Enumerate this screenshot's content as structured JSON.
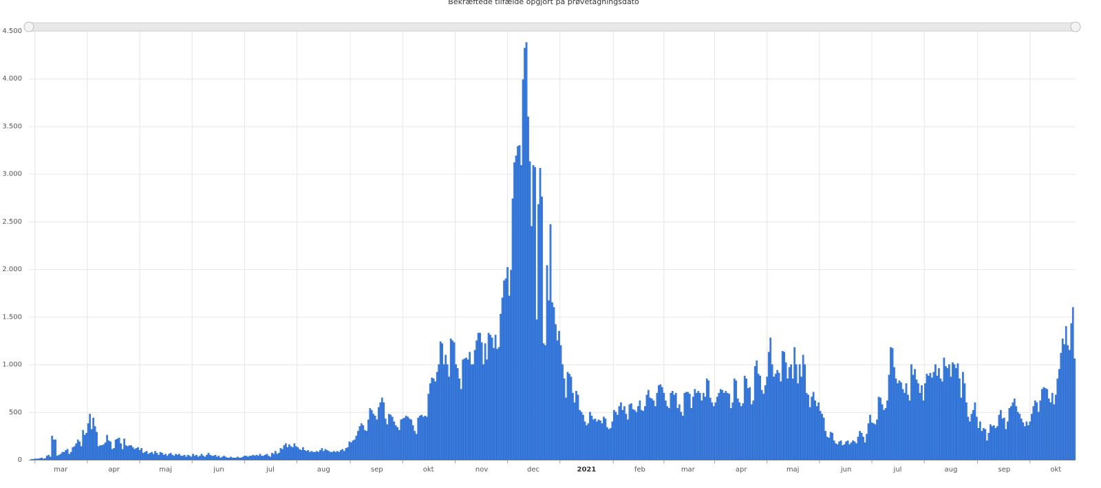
{
  "chart_data": {
    "type": "bar",
    "title": "Bekræftede tilfælde opgjort på prøvetagningsdato",
    "categories": [
      null,
      null,
      null,
      null,
      null,
      null,
      null,
      null,
      null,
      null,
      null,
      null,
      null,
      null,
      null,
      null,
      null,
      null,
      "mar",
      null,
      null,
      null,
      null,
      null,
      null,
      null,
      null,
      null,
      null,
      null,
      null,
      null,
      null,
      null,
      null,
      null,
      null,
      null,
      null,
      null,
      null,
      null,
      null,
      null,
      null,
      null,
      null,
      null,
      null,
      "apr",
      null,
      null,
      null,
      null,
      null,
      null,
      null,
      null,
      null,
      null,
      null,
      null,
      null,
      null,
      null,
      null,
      null,
      null,
      null,
      null,
      null,
      null,
      null,
      null,
      null,
      null,
      null,
      null,
      null,
      "maj",
      null,
      null,
      null,
      null,
      null,
      null,
      null,
      null,
      null,
      null,
      null,
      null,
      null,
      null,
      null,
      null,
      null,
      null,
      null,
      null,
      null,
      null,
      null,
      null,
      null,
      null,
      null,
      null,
      null,
      null,
      "jun",
      null,
      null,
      null,
      null,
      null,
      null,
      null,
      null,
      null,
      null,
      null,
      null,
      null,
      null,
      null,
      null,
      null,
      null,
      null,
      null,
      null,
      null,
      null,
      null,
      null,
      null,
      null,
      null,
      null,
      "jul",
      null,
      null,
      null,
      null,
      null,
      null,
      null,
      null,
      null,
      null,
      null,
      null,
      null,
      null,
      null,
      null,
      null,
      null,
      null,
      null,
      null,
      null,
      null,
      null,
      null,
      null,
      null,
      null,
      null,
      null,
      "aug",
      null,
      null,
      null,
      null,
      null,
      null,
      null,
      null,
      null,
      null,
      null,
      null,
      null,
      null,
      null,
      null,
      null,
      null,
      null,
      null,
      null,
      null,
      null,
      null,
      null,
      null,
      null,
      null,
      null,
      null,
      "sep",
      null,
      null,
      null,
      null,
      null,
      null,
      null,
      null,
      null,
      null,
      null,
      null,
      null,
      null,
      null,
      null,
      null,
      null,
      null,
      null,
      null,
      null,
      null,
      null,
      null,
      null,
      null,
      null,
      null,
      "okt",
      null,
      null,
      null,
      null,
      null,
      null,
      null,
      null,
      null,
      null,
      null,
      null,
      null,
      null,
      null,
      null,
      null,
      null,
      null,
      null,
      null,
      null,
      null,
      null,
      null,
      null,
      null,
      null,
      null,
      null,
      "nov",
      null,
      null,
      null,
      null,
      null,
      null,
      null,
      null,
      null,
      null,
      null,
      null,
      null,
      null,
      null,
      null,
      null,
      null,
      null,
      null,
      null,
      null,
      null,
      null,
      null,
      null,
      null,
      null,
      null,
      "dec",
      null,
      null,
      null,
      null,
      null,
      null,
      null,
      null,
      null,
      null,
      null,
      null,
      null,
      null,
      null,
      null,
      null,
      null,
      null,
      null,
      null,
      null,
      null,
      null,
      null,
      null,
      null,
      null,
      null,
      null,
      "2021",
      null,
      null,
      null,
      null,
      null,
      null,
      null,
      null,
      null,
      null,
      null,
      null,
      null,
      null,
      null,
      null,
      null,
      null,
      null,
      null,
      null,
      null,
      null,
      null,
      null,
      null,
      null,
      null,
      null,
      null,
      "feb",
      null,
      null,
      null,
      null,
      null,
      null,
      null,
      null,
      null,
      null,
      null,
      null,
      null,
      null,
      null,
      null,
      null,
      null,
      null,
      null,
      null,
      null,
      null,
      null,
      null,
      null,
      null,
      "mar",
      null,
      null,
      null,
      null,
      null,
      null,
      null,
      null,
      null,
      null,
      null,
      null,
      null,
      null,
      null,
      null,
      null,
      null,
      null,
      null,
      null,
      null,
      null,
      null,
      null,
      null,
      null,
      null,
      null,
      null,
      "apr",
      null,
      null,
      null,
      null,
      null,
      null,
      null,
      null,
      null,
      null,
      null,
      null,
      null,
      null,
      null,
      null,
      null,
      null,
      null,
      null,
      null,
      null,
      null,
      null,
      null,
      null,
      null,
      null,
      null,
      "maj",
      null,
      null,
      null,
      null,
      null,
      null,
      null,
      null,
      null,
      null,
      null,
      null,
      null,
      null,
      null,
      null,
      null,
      null,
      null,
      null,
      null,
      null,
      null,
      null,
      null,
      null,
      null,
      null,
      null,
      null,
      "jun",
      null,
      null,
      null,
      null,
      null,
      null,
      null,
      null,
      null,
      null,
      null,
      null,
      null,
      null,
      null,
      null,
      null,
      null,
      null,
      null,
      null,
      null,
      null,
      null,
      null,
      null,
      null,
      null,
      null,
      "jul",
      null,
      null,
      null,
      null,
      null,
      null,
      null,
      null,
      null,
      null,
      null,
      null,
      null,
      null,
      null,
      null,
      null,
      null,
      null,
      null,
      null,
      null,
      null,
      null,
      null,
      null,
      null,
      null,
      null,
      null,
      "aug",
      null,
      null,
      null,
      null,
      null,
      null,
      null,
      null,
      null,
      null,
      null,
      null,
      null,
      null,
      null,
      null,
      null,
      null,
      null,
      null,
      null,
      null,
      null,
      null,
      null,
      null,
      null,
      null,
      null,
      null,
      "sep",
      null,
      null,
      null,
      null,
      null,
      null,
      null,
      null,
      null,
      null,
      null,
      null,
      null,
      null,
      null,
      null,
      null,
      null,
      null,
      null,
      null,
      null,
      null,
      null,
      null,
      null,
      null,
      null,
      null,
      "okt",
      null,
      null,
      null,
      null,
      null,
      null,
      null,
      null,
      null,
      null,
      null
    ],
    "values": [
      0,
      5,
      5,
      10,
      10,
      10,
      15,
      20,
      10,
      15,
      40,
      50,
      30,
      250,
      210,
      210,
      40,
      50,
      60,
      80,
      80,
      100,
      110,
      60,
      80,
      130,
      140,
      170,
      210,
      190,
      140,
      310,
      260,
      280,
      380,
      480,
      320,
      440,
      350,
      290,
      140,
      150,
      150,
      160,
      180,
      260,
      200,
      190,
      110,
      120,
      210,
      220,
      230,
      170,
      110,
      220,
      150,
      140,
      150,
      150,
      130,
      110,
      120,
      130,
      100,
      120,
      70,
      80,
      90,
      60,
      70,
      80,
      60,
      90,
      70,
      50,
      80,
      70,
      50,
      60,
      40,
      60,
      70,
      50,
      40,
      60,
      50,
      60,
      40,
      40,
      50,
      30,
      50,
      40,
      30,
      60,
      40,
      50,
      30,
      40,
      60,
      40,
      30,
      50,
      70,
      50,
      40,
      40,
      50,
      30,
      40,
      20,
      30,
      40,
      30,
      20,
      20,
      30,
      20,
      20,
      20,
      30,
      20,
      20,
      30,
      40,
      40,
      30,
      40,
      40,
      50,
      40,
      50,
      40,
      60,
      40,
      40,
      50,
      60,
      40,
      30,
      70,
      60,
      90,
      60,
      70,
      120,
      110,
      150,
      170,
      130,
      160,
      140,
      130,
      170,
      140,
      130,
      110,
      100,
      130,
      100,
      90,
      100,
      80,
      90,
      80,
      80,
      90,
      80,
      100,
      120,
      90,
      110,
      100,
      90,
      80,
      80,
      90,
      80,
      90,
      80,
      100,
      110,
      90,
      120,
      130,
      190,
      180,
      200,
      210,
      250,
      300,
      350,
      380,
      360,
      310,
      300,
      420,
      540,
      520,
      480,
      460,
      420,
      550,
      600,
      650,
      600,
      430,
      370,
      480,
      470,
      450,
      400,
      360,
      340,
      310,
      420,
      430,
      440,
      460,
      450,
      430,
      420,
      360,
      300,
      270,
      440,
      460,
      470,
      450,
      460,
      450,
      690,
      800,
      860,
      850,
      820,
      920,
      1000,
      1240,
      1220,
      1000,
      1100,
      1000,
      870,
      1270,
      1250,
      1230,
      1000,
      960,
      850,
      740,
      1050,
      1060,
      1070,
      1050,
      1130,
      1000,
      1000,
      1150,
      1250,
      1330,
      1330,
      1230,
      1000,
      1220,
      1050,
      1330,
      1310,
      1280,
      1170,
      1310,
      1160,
      1180,
      1530,
      1700,
      1880,
      1900,
      2020,
      1720,
      1990,
      2740,
      3120,
      3190,
      3290,
      3300,
      3090,
      3990,
      4320,
      4380,
      3600,
      3130,
      2450,
      3090,
      3070,
      1470,
      2680,
      3060,
      2760,
      1220,
      1200,
      2040,
      1670,
      2470,
      1650,
      1600,
      1420,
      1250,
      1350,
      1200,
      1000,
      850,
      650,
      920,
      900,
      870,
      700,
      600,
      720,
      680,
      520,
      500,
      470,
      400,
      360,
      380,
      500,
      460,
      420,
      430,
      400,
      420,
      410,
      380,
      450,
      430,
      340,
      320,
      330,
      400,
      520,
      500,
      470,
      560,
      600,
      520,
      560,
      480,
      420,
      580,
      590,
      530,
      520,
      500,
      560,
      620,
      520,
      510,
      560,
      680,
      730,
      650,
      640,
      620,
      560,
      700,
      780,
      790,
      760,
      700,
      620,
      560,
      540,
      700,
      720,
      680,
      700,
      540,
      580,
      500,
      460,
      700,
      710,
      710,
      690,
      540,
      660,
      740,
      700,
      720,
      700,
      620,
      700,
      660,
      850,
      830,
      650,
      600,
      560,
      600,
      660,
      700,
      740,
      730,
      700,
      720,
      700,
      690,
      540,
      600,
      850,
      830,
      640,
      600,
      560,
      590,
      880,
      850,
      750,
      760,
      580,
      620,
      980,
      1040,
      900,
      880,
      730,
      690,
      780,
      870,
      1130,
      1280,
      1000,
      870,
      900,
      940,
      910,
      820,
      1140,
      1130,
      1020,
      850,
      970,
      1000,
      850,
      1180,
      1000,
      800,
      1000,
      870,
      1100,
      1000,
      700,
      680,
      550,
      660,
      710,
      620,
      560,
      600,
      510,
      480,
      440,
      300,
      240,
      230,
      290,
      280,
      200,
      170,
      160,
      190,
      200,
      150,
      160,
      190,
      200,
      160,
      180,
      200,
      190,
      170,
      240,
      300,
      280,
      240,
      180,
      270,
      380,
      470,
      390,
      380,
      370,
      420,
      660,
      650,
      580,
      520,
      540,
      620,
      890,
      1180,
      1170,
      970,
      850,
      800,
      830,
      810,
      740,
      700,
      800,
      680,
      620,
      1000,
      890,
      950,
      840,
      800,
      700,
      780,
      620,
      800,
      900,
      880,
      910,
      860,
      920,
      1000,
      880,
      960,
      850,
      820,
      1070,
      980,
      960,
      1000,
      870,
      1020,
      1000,
      960,
      1010,
      850,
      650,
      920,
      800,
      600,
      450,
      400,
      480,
      520,
      600,
      450,
      330,
      400,
      300,
      330,
      320,
      200,
      280,
      370,
      350,
      360,
      330,
      350,
      470,
      520,
      430,
      440,
      320,
      400,
      540,
      560,
      600,
      640,
      560,
      500,
      480,
      430,
      390,
      350,
      400,
      360,
      400,
      480,
      560,
      620,
      600,
      500,
      620,
      740,
      760,
      750,
      740,
      640,
      600,
      700,
      580,
      680,
      850,
      950,
      1120,
      1270,
      1210,
      1400,
      1200,
      1150,
      1430,
      1600,
      1060
    ],
    "color": "#3a7fe2",
    "ylim": [
      0,
      4500
    ],
    "yticks": [
      0,
      500,
      {
        "value": 1000,
        "label": "1.000"
      },
      {
        "value": 1500,
        "label": "1.500"
      },
      {
        "value": 2000,
        "label": "2.000"
      },
      {
        "value": 2500,
        "label": "2.500"
      },
      {
        "value": 3000,
        "label": "3.000"
      },
      {
        "value": 3500,
        "label": "3.500"
      },
      {
        "value": 4000,
        "label": "4.000"
      },
      {
        "value": 4500,
        "label": "4.500"
      }
    ],
    "grid": true
  }
}
